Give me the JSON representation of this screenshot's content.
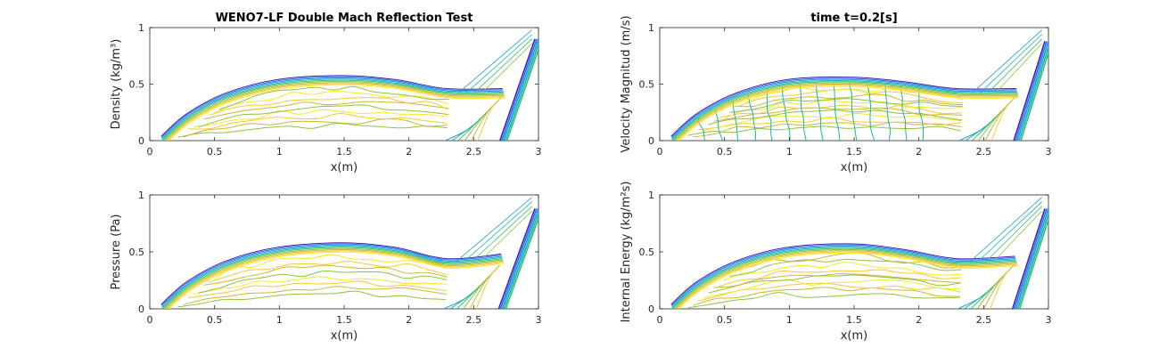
{
  "figure": {
    "colormap": [
      "#3e26a8",
      "#2d6ef8",
      "#1a9fd9",
      "#18b6b0",
      "#39c06e",
      "#8fc33d",
      "#cbb82e",
      "#f7c83a",
      "#f9e721"
    ]
  },
  "chart_data": [
    {
      "type": "contour",
      "title": "WENO7-LF Double Mach Reflection Test",
      "ylabel": "Density (kg/m³)",
      "xlabel": "x(m)",
      "xlim": [
        0,
        3
      ],
      "ylim": [
        0,
        1
      ],
      "xticks": [
        0,
        0.5,
        1,
        1.5,
        2,
        2.5,
        3
      ],
      "yticks": [
        0,
        0.5,
        1
      ],
      "xtick_labels": [
        "0",
        "0.5",
        "1",
        "1.5",
        "2",
        "2.5",
        "3"
      ],
      "ytick_labels": [
        "0",
        "0.5",
        "1"
      ],
      "bow_shock": [
        [
          0.1,
          0
        ],
        [
          0.3,
          0.2
        ],
        [
          0.6,
          0.38
        ],
        [
          1.0,
          0.5
        ],
        [
          1.5,
          0.535
        ],
        [
          1.9,
          0.5
        ],
        [
          2.3,
          0.42
        ],
        [
          2.73,
          0.42
        ]
      ],
      "incident_shock": [
        [
          2.73,
          0
        ],
        [
          3.0,
          0.9
        ]
      ],
      "interior_levels": 9
    },
    {
      "type": "contour",
      "title": "time t=0.2[s]",
      "ylabel": "Velocity Magnitud (m/s)",
      "xlabel": "x(m)",
      "xlim": [
        0,
        3
      ],
      "ylim": [
        0,
        1
      ],
      "xticks": [
        0,
        0.5,
        1,
        1.5,
        2,
        2.5,
        3
      ],
      "yticks": [
        0,
        0.5,
        1
      ],
      "xtick_labels": [
        "0",
        "0.5",
        "1",
        "1.5",
        "2",
        "2.5",
        "3"
      ],
      "ytick_labels": [
        "0",
        "0.5",
        "1"
      ],
      "bow_shock": [
        [
          0.1,
          0
        ],
        [
          0.3,
          0.2
        ],
        [
          0.6,
          0.38
        ],
        [
          1.0,
          0.5
        ],
        [
          1.5,
          0.52
        ],
        [
          1.9,
          0.48
        ],
        [
          2.3,
          0.42
        ],
        [
          2.76,
          0.42
        ]
      ],
      "incident_shock": [
        [
          2.76,
          0
        ],
        [
          3.0,
          0.88
        ]
      ],
      "interior_levels": 12
    },
    {
      "type": "contour",
      "title": "",
      "ylabel": "Pressure (Pa)",
      "xlabel": "x(m)",
      "xlim": [
        0,
        3
      ],
      "ylim": [
        0,
        1
      ],
      "xticks": [
        0,
        0.5,
        1,
        1.5,
        2,
        2.5,
        3
      ],
      "yticks": [
        0,
        0.5,
        1
      ],
      "xtick_labels": [
        "0",
        "0.5",
        "1",
        "1.5",
        "2",
        "2.5",
        "3"
      ],
      "ytick_labels": [
        "0",
        "0.5",
        "1"
      ],
      "bow_shock": [
        [
          0.1,
          0
        ],
        [
          0.3,
          0.2
        ],
        [
          0.6,
          0.38
        ],
        [
          1.0,
          0.5
        ],
        [
          1.5,
          0.54
        ],
        [
          1.9,
          0.5
        ],
        [
          2.3,
          0.4
        ],
        [
          2.72,
          0.44
        ]
      ],
      "incident_shock": [
        [
          2.72,
          0
        ],
        [
          3.0,
          0.88
        ]
      ],
      "interior_levels": 8
    },
    {
      "type": "contour",
      "title": "",
      "ylabel": "Internal Energy (kg/m²s)",
      "xlabel": "x(m)",
      "xlim": [
        0,
        3
      ],
      "ylim": [
        0,
        1
      ],
      "xticks": [
        0,
        0.5,
        1,
        1.5,
        2,
        2.5,
        3
      ],
      "yticks": [
        0,
        0.5,
        1
      ],
      "xtick_labels": [
        "0",
        "0.5",
        "1",
        "1.5",
        "2",
        "2.5",
        "3"
      ],
      "ytick_labels": [
        "0",
        "0.5",
        "1"
      ],
      "bow_shock": [
        [
          0.1,
          0
        ],
        [
          0.3,
          0.2
        ],
        [
          0.6,
          0.38
        ],
        [
          1.0,
          0.5
        ],
        [
          1.5,
          0.53
        ],
        [
          1.9,
          0.48
        ],
        [
          2.3,
          0.4
        ],
        [
          2.75,
          0.42
        ]
      ],
      "incident_shock": [
        [
          2.75,
          0
        ],
        [
          3.0,
          0.88
        ]
      ],
      "interior_levels": 10
    }
  ]
}
